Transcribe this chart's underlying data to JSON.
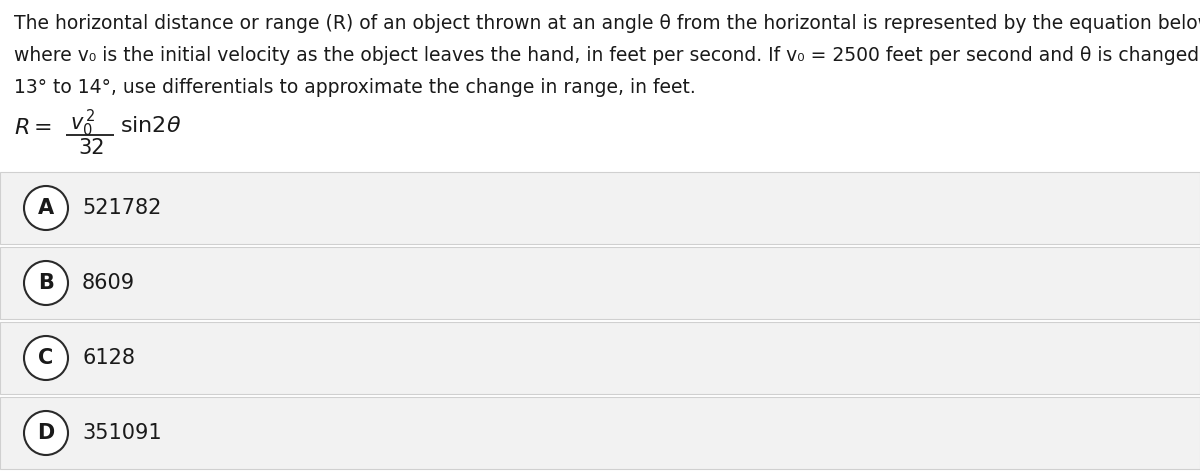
{
  "background_color": "#ffffff",
  "question_text_line1": "The horizontal distance or range (R) of an object thrown at an angle θ from the horizontal is represented by the equation below",
  "question_text_line2": "where v₀ is the initial velocity as the object leaves the hand, in feet per second. If v₀ = 2500 feet per second and θ is changed from",
  "question_text_line3": "13° to 14°, use differentials to approximate the change in range, in feet.",
  "options": [
    {
      "label": "A",
      "value": "521782"
    },
    {
      "label": "B",
      "value": "8609"
    },
    {
      "label": "C",
      "value": "6128"
    },
    {
      "label": "D",
      "value": "351091"
    }
  ],
  "option_bg_color": "#f2f2f2",
  "option_border_color": "#d0d0d0",
  "text_color": "#1a1a1a",
  "circle_bg": "#ffffff",
  "circle_border": "#2a2a2a",
  "font_size_question": 13.5,
  "font_size_options": 15,
  "font_size_formula": 14
}
